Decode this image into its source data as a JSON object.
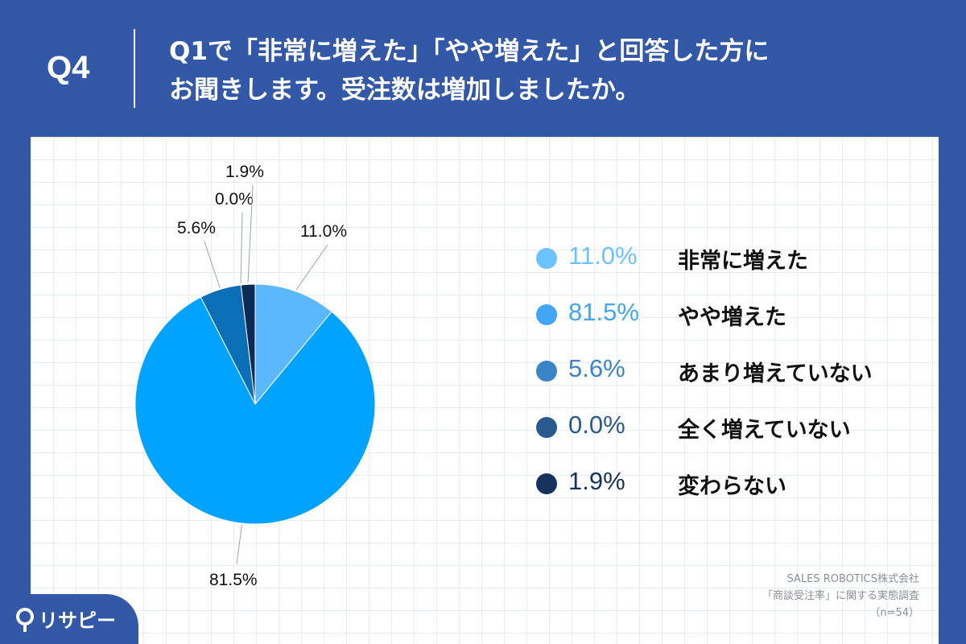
{
  "header": {
    "question_number": "Q4",
    "question_line1": "Q1で「非常に増えた」「やや増えた」と回答した方に",
    "question_line2": "お聞きします。受注数は増加しましたか。"
  },
  "chart_data": {
    "type": "pie",
    "title": "",
    "slices": [
      {
        "label": "非常に増えた",
        "value": 11.0,
        "display": "11.0%",
        "color": "#5bb8ff"
      },
      {
        "label": "やや増えた",
        "value": 81.5,
        "display": "81.5%",
        "color": "#00a3ff"
      },
      {
        "label": "あまり増えていない",
        "value": 5.6,
        "display": "5.6%",
        "color": "#0b6fb8"
      },
      {
        "label": "全く増えていない",
        "value": 0.0,
        "display": "0.0%",
        "color": "#0a4d86"
      },
      {
        "label": "変わらない",
        "value": 1.9,
        "display": "1.9%",
        "color": "#0c2b57"
      }
    ],
    "legend_placement": "right"
  },
  "legend_colors": {
    "dots": [
      "#6cc3ff",
      "#42a5f5",
      "#3b84c8",
      "#28598f",
      "#16335e"
    ],
    "text": [
      "#6cc3ff",
      "#42a5f5",
      "#3b84c8",
      "#28598f",
      "#16335e"
    ]
  },
  "source": {
    "line1": "SALES ROBOTICS株式会社",
    "line2": "「商談受注率」に関する実態調査",
    "line3": "（n=54）"
  },
  "logo": {
    "text": "リサピー",
    "icon": "pin-icon"
  },
  "colors": {
    "header_bg": "#3358a8",
    "panel_bg": "#ffffff"
  }
}
